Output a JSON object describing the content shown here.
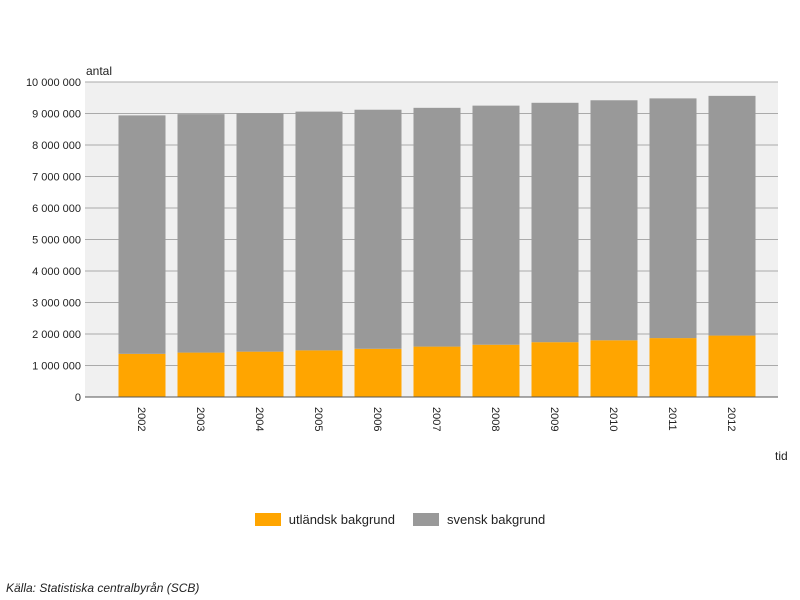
{
  "chart_data": {
    "type": "bar",
    "stacked": true,
    "ylabel": "antal",
    "xlabel": "tid",
    "ylim": [
      0,
      10000000
    ],
    "yticks": [
      0,
      1000000,
      2000000,
      3000000,
      4000000,
      5000000,
      6000000,
      7000000,
      8000000,
      9000000,
      10000000
    ],
    "ytick_labels": [
      "0",
      "1 000 000",
      "2 000 000",
      "3 000 000",
      "4 000 000",
      "5 000 000",
      "6 000 000",
      "7 000 000",
      "8 000 000",
      "9 000 000",
      "10 000 000"
    ],
    "categories": [
      "2002",
      "2003",
      "2004",
      "2005",
      "2006",
      "2007",
      "2008",
      "2009",
      "2010",
      "2011",
      "2012"
    ],
    "series": [
      {
        "name": "utländsk bakgrund",
        "color": "#FFA500",
        "values": [
          1370000,
          1410000,
          1440000,
          1480000,
          1530000,
          1600000,
          1660000,
          1740000,
          1800000,
          1870000,
          1950000
        ]
      },
      {
        "name": "svensk bakgrund",
        "color": "#999999",
        "values": [
          7570000,
          7570000,
          7570000,
          7580000,
          7590000,
          7580000,
          7590000,
          7600000,
          7620000,
          7610000,
          7610000
        ]
      }
    ],
    "grid": true,
    "legend_position": "bottom",
    "plot_background": "#F0F0F0"
  },
  "source": "Källa: Statistiska centralbyrån (SCB)"
}
